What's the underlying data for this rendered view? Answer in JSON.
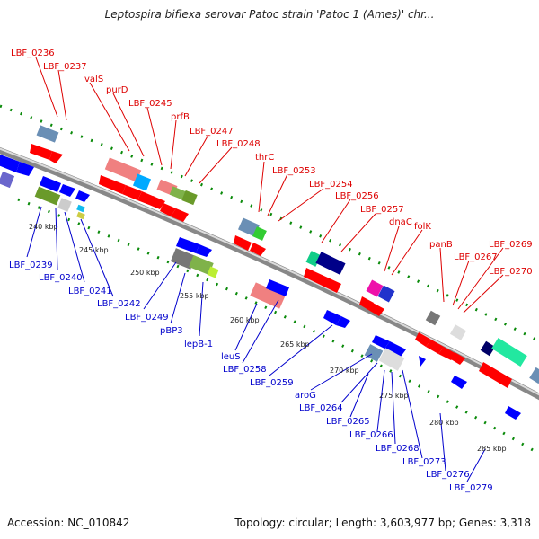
{
  "title": "Leptospira biflexa serovar Patoc strain 'Patoc 1 (Ames)' chr...",
  "footer": {
    "accession": "Accession: NC_010842",
    "stats": "Topology: circular; Length: 3,603,977 bp; Genes: 3,318"
  },
  "top_genes": [
    "LBF_0236",
    "LBF_0237",
    "valS",
    "purD",
    "LBF_0245",
    "prfB",
    "LBF_0247",
    "LBF_0248",
    "thrC",
    "LBF_0253",
    "LBF_0254",
    "LBF_0256",
    "LBF_0257",
    "dnaC",
    "folK",
    "panB",
    "LBF_0267",
    "LBF_0269",
    "LBF_0270"
  ],
  "bottom_genes": [
    "LBF_0239",
    "LBF_0240",
    "LBF_0241",
    "LBF_0242",
    "LBF_0249",
    "pBP3",
    "lepB-1",
    "leuS",
    "LBF_0258",
    "LBF_0259",
    "aroG",
    "LBF_0264",
    "LBF_0265",
    "LBF_0266",
    "LBF_0268",
    "LBF_0273",
    "LBF_0276",
    "LBF_0279"
  ],
  "kbp_ticks": [
    "240 kbp",
    "245 kbp",
    "250 kbp",
    "255 kbp",
    "260 kbp",
    "265 kbp",
    "270 kbp",
    "275 kbp",
    "280 kbp",
    "285 kbp"
  ],
  "colors": {
    "top_label": "#dd0000",
    "bottom_label": "#0000cc",
    "forward_gene": "#ff0000",
    "reverse_gene": "#0000ff",
    "backbone": "#999999",
    "dots": "#008800"
  }
}
